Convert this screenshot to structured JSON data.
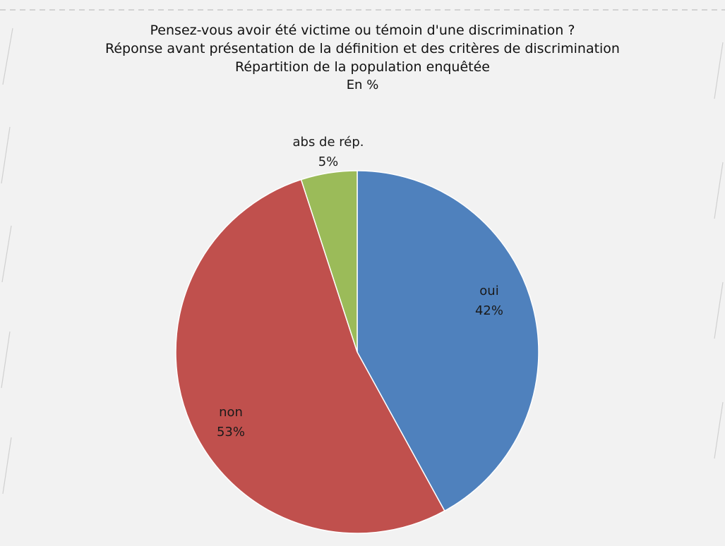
{
  "chart_data": {
    "type": "pie",
    "title": "Pensez-vous avoir été victime ou témoin d'une discrimination ?",
    "subtitle_1": "Réponse avant présentation de la définition et des critères de discrimination",
    "subtitle_2": "Répartition de la population enquêtée",
    "unit": "En %",
    "slices": [
      {
        "label": "oui",
        "value": 42,
        "value_label": "42%",
        "color": "#4f81bd"
      },
      {
        "label": "non",
        "value": 53,
        "value_label": "53%",
        "color": "#c0504d"
      },
      {
        "label": "abs de rép.",
        "value": 5,
        "value_label": "5%",
        "color": "#9bbb59"
      }
    ]
  }
}
